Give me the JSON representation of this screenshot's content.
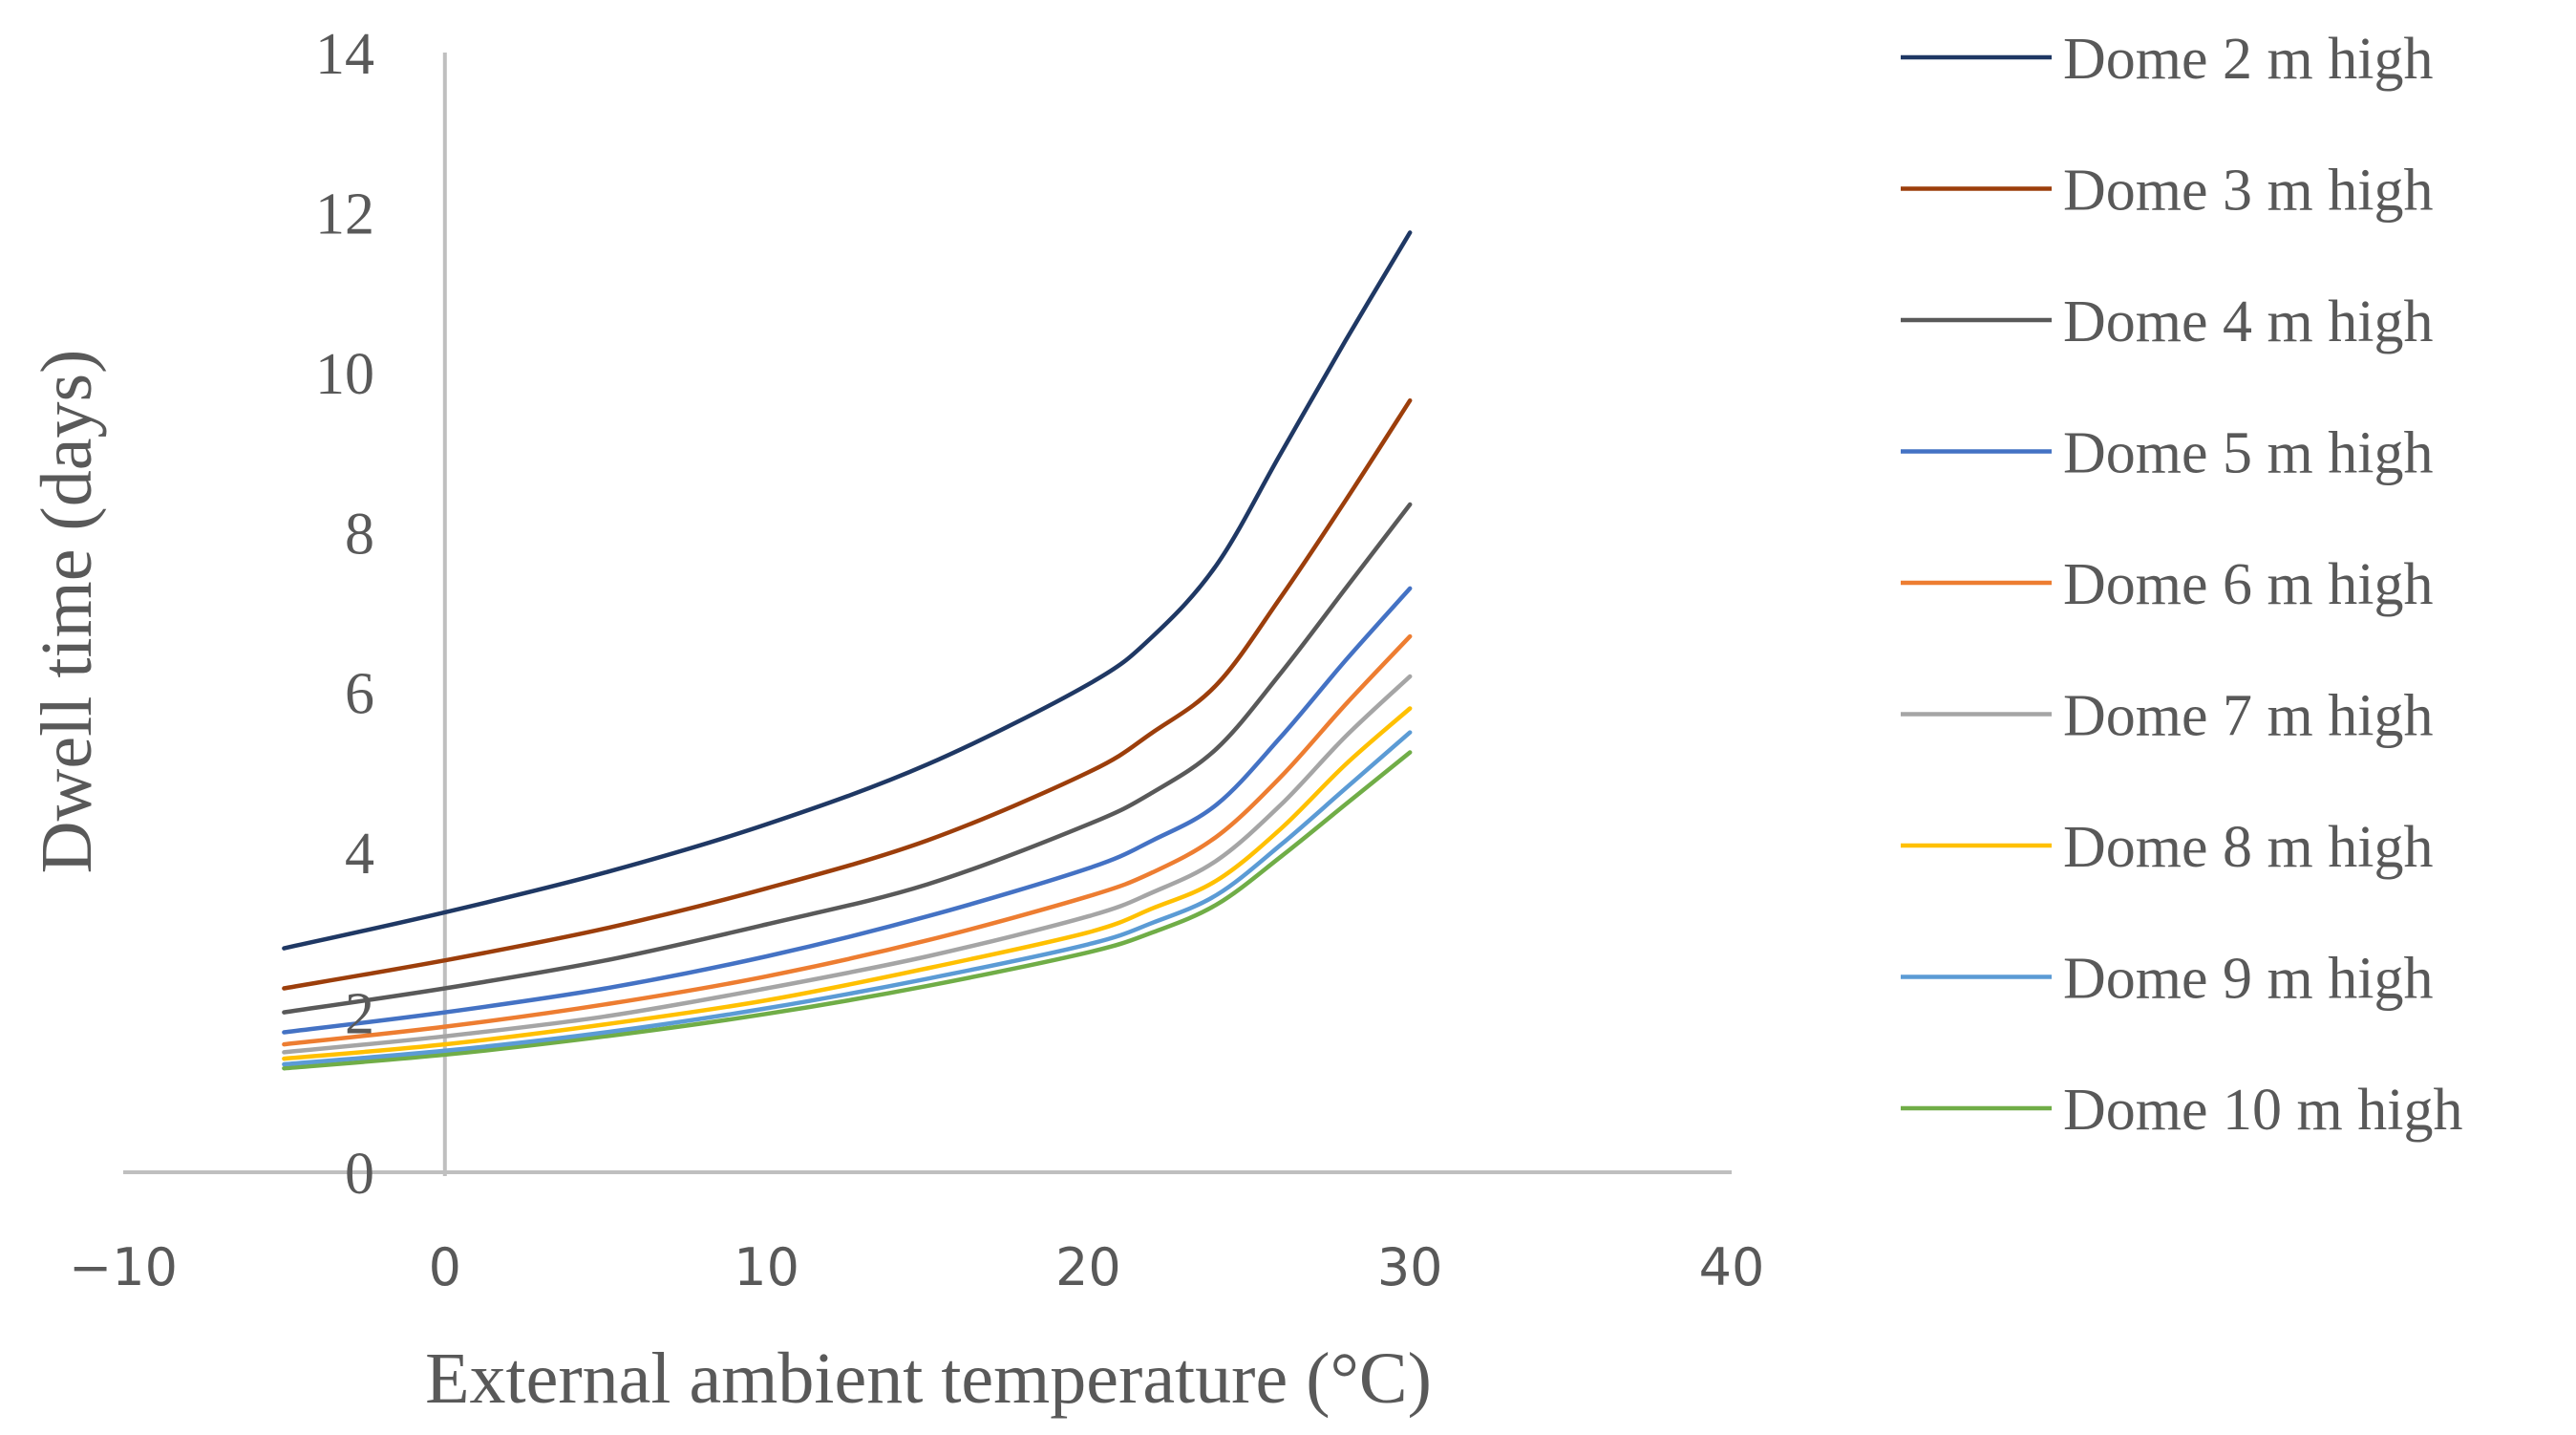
{
  "chart_data": {
    "type": "line",
    "xlabel": "External ambient temperature (°C)",
    "ylabel": "Dwell time (days)",
    "xlim": [
      -10,
      40
    ],
    "ylim": [
      0,
      14
    ],
    "xticks": [
      -10,
      0,
      10,
      20,
      30,
      40
    ],
    "xtick_labels": [
      "−10",
      "0",
      "10",
      "20",
      "30",
      "40"
    ],
    "yticks": [
      0,
      2,
      4,
      6,
      8,
      10,
      12,
      14
    ],
    "ytick_labels": [
      "0",
      "2",
      "4",
      "6",
      "8",
      "10",
      "12",
      "14"
    ],
    "grid": false,
    "legend_position": "right",
    "x": [
      -5,
      0,
      5,
      10,
      15,
      20,
      22,
      24,
      26,
      28,
      30
    ],
    "series": [
      {
        "name": "Dome 2 m high",
        "color": "#1f3864",
        "values": [
          2.8,
          3.25,
          3.75,
          4.35,
          5.1,
          6.1,
          6.7,
          7.6,
          9.0,
          10.4,
          11.75
        ]
      },
      {
        "name": "Dome 3 m high",
        "color": "#9c3e0b",
        "values": [
          2.3,
          2.65,
          3.05,
          3.55,
          4.15,
          5.0,
          5.5,
          6.1,
          7.2,
          8.4,
          9.65
        ]
      },
      {
        "name": "Dome 4 m high",
        "color": "#595959",
        "values": [
          2.0,
          2.3,
          2.65,
          3.1,
          3.6,
          4.35,
          4.75,
          5.3,
          6.25,
          7.3,
          8.35
        ]
      },
      {
        "name": "Dome 5 m high",
        "color": "#4472c4",
        "values": [
          1.75,
          2.0,
          2.3,
          2.7,
          3.2,
          3.8,
          4.15,
          4.6,
          5.45,
          6.4,
          7.3
        ]
      },
      {
        "name": "Dome 6 m high",
        "color": "#ed7d31",
        "values": [
          1.6,
          1.82,
          2.1,
          2.45,
          2.9,
          3.45,
          3.75,
          4.2,
          4.95,
          5.85,
          6.7
        ]
      },
      {
        "name": "Dome 7 m high",
        "color": "#a5a5a5",
        "values": [
          1.5,
          1.7,
          1.95,
          2.3,
          2.7,
          3.2,
          3.5,
          3.9,
          4.6,
          5.45,
          6.2
        ]
      },
      {
        "name": "Dome 8 m high",
        "color": "#ffc000",
        "values": [
          1.42,
          1.6,
          1.85,
          2.15,
          2.55,
          3.0,
          3.3,
          3.65,
          4.3,
          5.1,
          5.8
        ]
      },
      {
        "name": "Dome 9 m high",
        "color": "#5b9bd5",
        "values": [
          1.35,
          1.52,
          1.75,
          2.05,
          2.42,
          2.85,
          3.12,
          3.47,
          4.1,
          4.8,
          5.5
        ]
      },
      {
        "name": "Dome 10 m high",
        "color": "#70ad47",
        "values": [
          1.3,
          1.47,
          1.7,
          1.98,
          2.33,
          2.75,
          3.0,
          3.35,
          3.95,
          4.6,
          5.25
        ]
      }
    ]
  }
}
